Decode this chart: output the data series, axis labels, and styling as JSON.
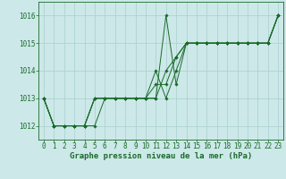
{
  "background_color": "#cce8e8",
  "grid_color": "#aacfcf",
  "line_color": "#1a6b2a",
  "marker_color": "#1a6b2a",
  "xlabel": "Graphe pression niveau de la mer (hPa)",
  "xlabel_fontsize": 6.5,
  "ylabel_fontsize": 6.0,
  "tick_fontsize": 5.5,
  "ylim": [
    1011.5,
    1016.5
  ],
  "xlim": [
    -0.5,
    23.5
  ],
  "yticks": [
    1012,
    1013,
    1014,
    1015,
    1016
  ],
  "xticks": [
    0,
    1,
    2,
    3,
    4,
    5,
    6,
    7,
    8,
    9,
    10,
    11,
    12,
    13,
    14,
    15,
    16,
    17,
    18,
    19,
    20,
    21,
    22,
    23
  ],
  "series": [
    [
      1013.0,
      1012.0,
      1012.0,
      1012.0,
      1012.0,
      1012.0,
      1013.0,
      1013.0,
      1013.0,
      1013.0,
      1013.0,
      1013.0,
      1016.0,
      1013.5,
      1015.0,
      1015.0,
      1015.0,
      1015.0,
      1015.0,
      1015.0,
      1015.0,
      1015.0,
      1015.0,
      1016.0
    ],
    [
      1013.0,
      1012.0,
      1012.0,
      1012.0,
      1012.0,
      1013.0,
      1013.0,
      1013.0,
      1013.0,
      1013.0,
      1013.0,
      1014.0,
      1013.0,
      1014.0,
      1015.0,
      1015.0,
      1015.0,
      1015.0,
      1015.0,
      1015.0,
      1015.0,
      1015.0,
      1015.0,
      1016.0
    ],
    [
      1013.0,
      1012.0,
      1012.0,
      1012.0,
      1012.0,
      1013.0,
      1013.0,
      1013.0,
      1013.0,
      1013.0,
      1013.0,
      1013.0,
      1014.0,
      1014.5,
      1015.0,
      1015.0,
      1015.0,
      1015.0,
      1015.0,
      1015.0,
      1015.0,
      1015.0,
      1015.0,
      1016.0
    ],
    [
      1013.0,
      1012.0,
      1012.0,
      1012.0,
      1012.0,
      1013.0,
      1013.0,
      1013.0,
      1013.0,
      1013.0,
      1013.0,
      1013.5,
      1013.5,
      1014.5,
      1015.0,
      1015.0,
      1015.0,
      1015.0,
      1015.0,
      1015.0,
      1015.0,
      1015.0,
      1015.0,
      1016.0
    ]
  ]
}
